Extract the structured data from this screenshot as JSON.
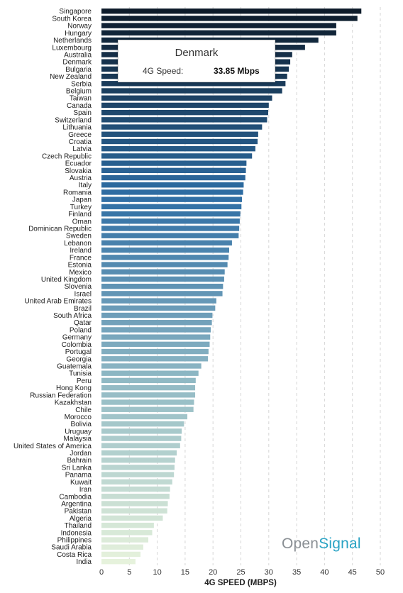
{
  "chart_data": {
    "type": "bar",
    "orientation": "horizontal",
    "xlabel": "4G SPEED (MBPS)",
    "ylabel": "",
    "xlim": [
      0,
      50
    ],
    "xticks": [
      0,
      5,
      10,
      15,
      20,
      25,
      30,
      35,
      40,
      45,
      50
    ],
    "grid": true,
    "color_gradient": [
      "#0d1b2a",
      "#2e6da4",
      "#8fb8c4",
      "#e6f2dc"
    ],
    "categories": [
      "Singapore",
      "South Korea",
      "Norway",
      "Hungary",
      "Netherlands",
      "Luxembourg",
      "Australia",
      "Denmark",
      "Bulgaria",
      "New Zealand",
      "Serbia",
      "Belgium",
      "Taiwan",
      "Canada",
      "Spain",
      "Switzerland",
      "Lithuania",
      "Greece",
      "Croatia",
      "Latvia",
      "Czech Republic",
      "Ecuador",
      "Slovakia",
      "Austria",
      "Italy",
      "Romania",
      "Japan",
      "Turkey",
      "Finland",
      "Oman",
      "Dominican Republic",
      "Sweden",
      "Lebanon",
      "Ireland",
      "France",
      "Estonia",
      "Mexico",
      "United Kingdom",
      "Slovenia",
      "Israel",
      "United Arab Emirates",
      "Brazil",
      "South Africa",
      "Qatar",
      "Poland",
      "Germany",
      "Colombia",
      "Portugal",
      "Georgia",
      "Guatemala",
      "Tunisia",
      "Peru",
      "Hong Kong",
      "Russian Federation",
      "Kazakhstan",
      "Chile",
      "Morocco",
      "Bolivia",
      "Uruguay",
      "Malaysia",
      "United States of America",
      "Jordan",
      "Bahrain",
      "Sri Lanka",
      "Panama",
      "Kuwait",
      "Iran",
      "Cambodia",
      "Argentina",
      "Pakistan",
      "Algeria",
      "Thailand",
      "Indonesia",
      "Philippines",
      "Saudi Arabia",
      "Costa Rica",
      "India"
    ],
    "values": [
      46.6,
      45.9,
      42.1,
      42.1,
      38.9,
      36.5,
      34.2,
      33.85,
      33.6,
      33.3,
      33.0,
      32.4,
      30.6,
      30.0,
      29.9,
      29.7,
      28.8,
      28.1,
      28.0,
      27.6,
      27.0,
      26.0,
      25.9,
      25.8,
      25.5,
      25.4,
      25.2,
      25.1,
      24.9,
      24.8,
      24.7,
      24.6,
      23.4,
      22.9,
      22.8,
      22.6,
      22.1,
      22.0,
      21.8,
      21.7,
      20.6,
      20.4,
      19.9,
      19.8,
      19.6,
      19.5,
      19.4,
      19.2,
      19.1,
      17.9,
      17.4,
      16.9,
      16.8,
      16.8,
      16.6,
      16.5,
      15.4,
      14.8,
      14.4,
      14.3,
      14.1,
      13.5,
      13.2,
      13.1,
      13.0,
      12.7,
      12.3,
      12.2,
      11.9,
      11.8,
      11.0,
      9.4,
      9.1,
      8.4,
      7.5,
      7.0,
      6.1
    ]
  },
  "tooltip": {
    "title": "Denmark",
    "metric_label": "4G Speed:",
    "metric_value": "33.85 Mbps"
  },
  "brand": {
    "part1": "Open",
    "part2": "Signal"
  }
}
